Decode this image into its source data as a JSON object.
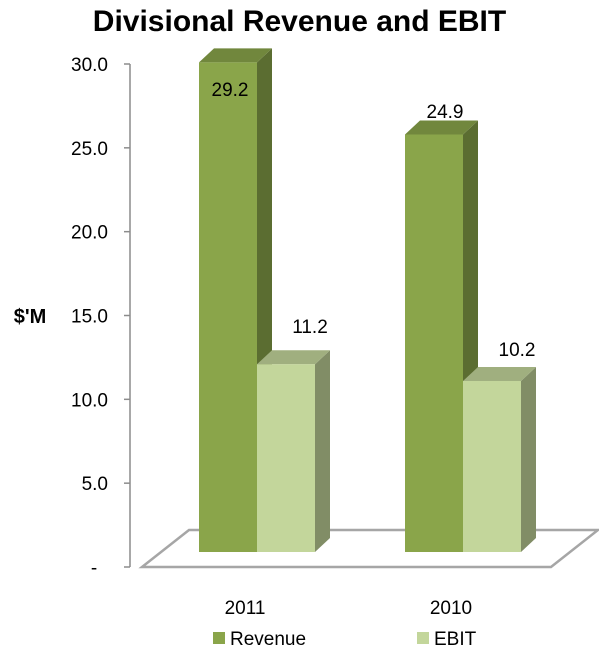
{
  "chart_data": {
    "type": "bar",
    "title": "Divisional Revenue and EBIT",
    "ylabel": "$'M",
    "xlabel": "",
    "categories": [
      "2011",
      "2010"
    ],
    "series": [
      {
        "name": "Revenue",
        "values": [
          29.2,
          24.9
        ],
        "color": "#8aa54a"
      },
      {
        "name": "EBIT",
        "values": [
          11.2,
          10.2
        ],
        "color": "#c3d69b"
      }
    ],
    "yticks": [
      "-",
      "5.0",
      "10.0",
      "15.0",
      "20.0",
      "25.0",
      "30.0"
    ],
    "ylim": [
      0,
      30
    ],
    "grid": false,
    "legend": "bottom",
    "style": "3d-column"
  }
}
